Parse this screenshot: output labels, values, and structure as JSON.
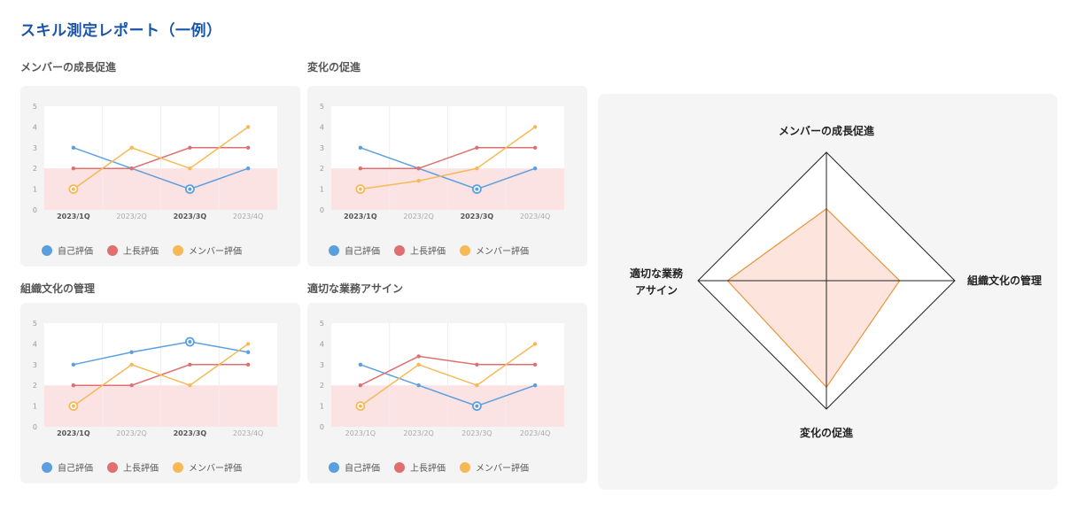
{
  "page_title": "スキル測定レポート（一例）",
  "legend": {
    "self": "自己評価",
    "boss": "上長評価",
    "member": "メンバー評価"
  },
  "colors": {
    "self": "#5b9fdf",
    "boss": "#e07070",
    "member": "#f7b955",
    "threshold_band": "#fbe3e3",
    "radar_fill": "#fde0d8",
    "radar_stroke": "#e8943a",
    "title": "#1a56a8"
  },
  "chart_data": [
    {
      "type": "line",
      "title": "メンバーの成長促進",
      "categories": [
        "2023/1Q",
        "2023/2Q",
        "2023/3Q",
        "2023/4Q"
      ],
      "bold_categories": [
        "2023/1Q",
        "2023/3Q"
      ],
      "ylim": [
        0,
        5
      ],
      "yticks": [
        "0",
        "1",
        "2",
        "3",
        "4",
        "5"
      ],
      "band": [
        0,
        2
      ],
      "series": [
        {
          "name": "自己評価",
          "key": "self",
          "values": [
            3,
            2,
            1,
            2
          ],
          "highlight": [
            2
          ]
        },
        {
          "name": "上長評価",
          "key": "boss",
          "values": [
            2,
            2,
            3,
            3
          ],
          "highlight": []
        },
        {
          "name": "メンバー評価",
          "key": "member",
          "values": [
            1,
            3,
            2,
            4
          ],
          "highlight": [
            0
          ]
        }
      ]
    },
    {
      "type": "line",
      "title": "変化の促進",
      "categories": [
        "2023/1Q",
        "2023/2Q",
        "2023/3Q",
        "2023/4Q"
      ],
      "bold_categories": [
        "2023/1Q",
        "2023/3Q"
      ],
      "ylim": [
        0,
        5
      ],
      "yticks": [
        "0",
        "1",
        "2",
        "3",
        "4",
        "5"
      ],
      "band": [
        0,
        2
      ],
      "series": [
        {
          "name": "自己評価",
          "key": "self",
          "values": [
            3,
            2,
            1,
            2
          ],
          "highlight": [
            2
          ]
        },
        {
          "name": "上長評価",
          "key": "boss",
          "values": [
            2,
            2,
            3,
            3
          ],
          "highlight": []
        },
        {
          "name": "メンバー評価",
          "key": "member",
          "values": [
            1,
            1.4,
            2,
            4
          ],
          "highlight": [
            0
          ]
        }
      ]
    },
    {
      "type": "line",
      "title": "組織文化の管理",
      "categories": [
        "2023/1Q",
        "2023/2Q",
        "2023/3Q",
        "2023/4Q"
      ],
      "bold_categories": [
        "2023/1Q",
        "2023/3Q"
      ],
      "ylim": [
        0,
        5
      ],
      "yticks": [
        "0",
        "1",
        "2",
        "3",
        "4",
        "5"
      ],
      "band": [
        0,
        2
      ],
      "series": [
        {
          "name": "自己評価",
          "key": "self",
          "values": [
            3,
            3.6,
            4.1,
            3.6
          ],
          "highlight": [
            2
          ]
        },
        {
          "name": "上長評価",
          "key": "boss",
          "values": [
            2,
            2,
            3,
            3
          ],
          "highlight": []
        },
        {
          "name": "メンバー評価",
          "key": "member",
          "values": [
            1,
            3,
            2,
            4
          ],
          "highlight": [
            0
          ]
        }
      ]
    },
    {
      "type": "line",
      "title": "適切な業務アサイン",
      "categories": [
        "2023/1Q",
        "2023/2Q",
        "2023/3Q",
        "2023/4Q"
      ],
      "bold_categories": [],
      "ylim": [
        0,
        5
      ],
      "yticks": [
        "0",
        "1",
        "2",
        "3",
        "4",
        "5"
      ],
      "band": [
        0,
        2
      ],
      "series": [
        {
          "name": "自己評価",
          "key": "self",
          "values": [
            3,
            2,
            1,
            2
          ],
          "highlight": [
            2
          ]
        },
        {
          "name": "上長評価",
          "key": "boss",
          "values": [
            2,
            3.4,
            3,
            3
          ],
          "highlight": []
        },
        {
          "name": "メンバー評価",
          "key": "member",
          "values": [
            1,
            3,
            2,
            4
          ],
          "highlight": [
            0
          ]
        }
      ]
    },
    {
      "type": "radar",
      "axes": [
        "メンバーの成長促進",
        "組織文化の管理",
        "変化の促進",
        "適切な業務アサイン"
      ],
      "axis_labels": {
        "top": "メンバーの成長促進",
        "right": "組織文化の管理",
        "bottom": "変化の促進",
        "left_line1": "適切な業務",
        "left_line2": "アサイン"
      },
      "max": 1,
      "values": [
        0.56,
        0.57,
        0.83,
        0.77
      ]
    }
  ]
}
